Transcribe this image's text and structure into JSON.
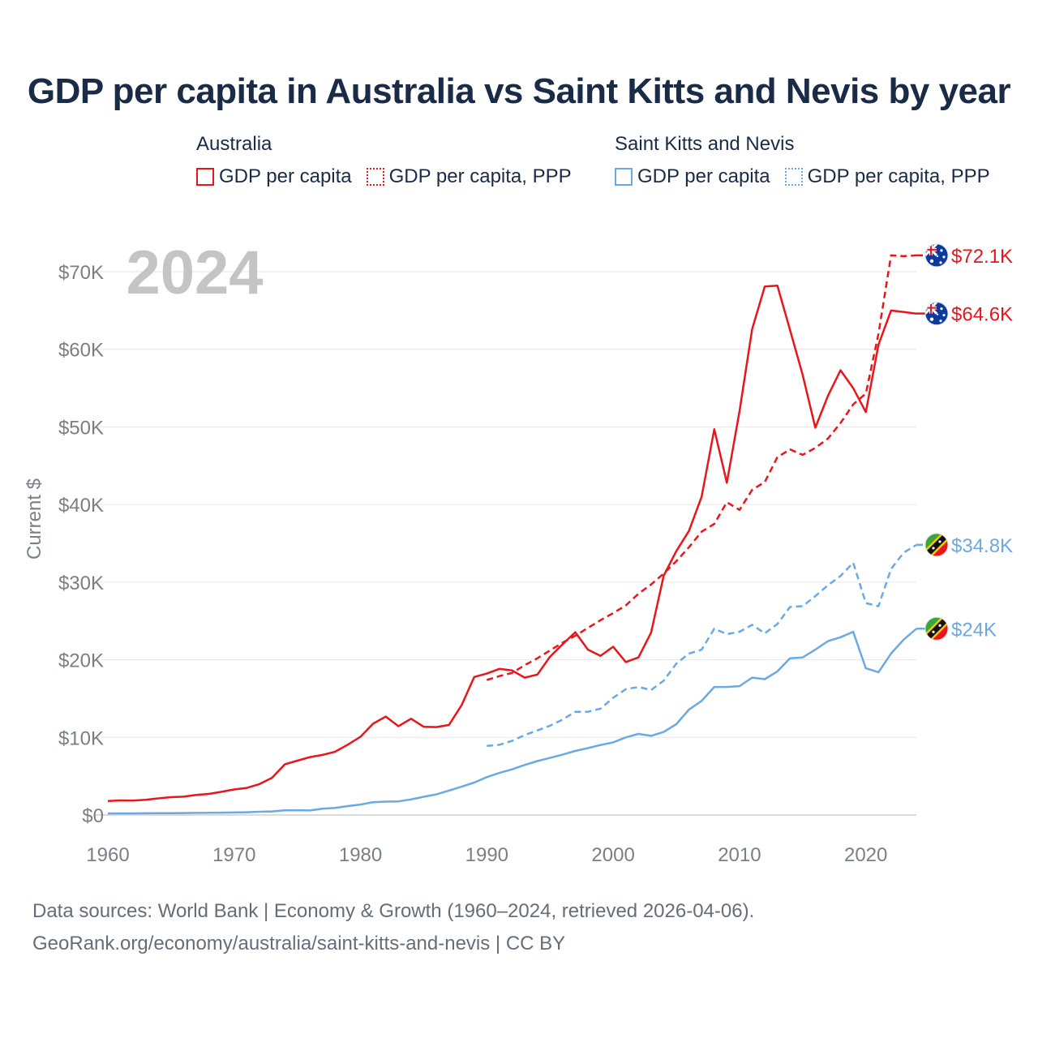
{
  "title": "GDP per capita in Australia vs Saint Kitts and Nevis by year",
  "legend": {
    "groups": [
      {
        "name": "Australia",
        "color": "#e8161b",
        "items": [
          {
            "label": "GDP per capita",
            "style": "solid"
          },
          {
            "label": "GDP per capita, PPP",
            "style": "dotted"
          }
        ]
      },
      {
        "name": "Saint Kitts and Nevis",
        "color": "#6aa9e4",
        "items": [
          {
            "label": "GDP per capita",
            "style": "solid"
          },
          {
            "label": "GDP per capita, PPP",
            "style": "dotted"
          }
        ]
      }
    ]
  },
  "footer": {
    "line1": "Data sources: World Bank | Economy & Growth (1960–2024, retrieved 2026-04-06).",
    "line2": "GeoRank.org/economy/australia/saint-kitts-and-nevis | CC BY"
  },
  "chart_data": {
    "type": "line",
    "year_label": "2024",
    "ylabel": "Current $",
    "xlim": [
      1960,
      2024
    ],
    "ylim": [
      0,
      70000
    ],
    "xticks": [
      1960,
      1970,
      1980,
      1990,
      2000,
      2010,
      2020
    ],
    "yticks": [
      0,
      10000,
      20000,
      30000,
      40000,
      50000,
      60000,
      70000
    ],
    "ytick_labels": [
      "$0",
      "$10K",
      "$20K",
      "$30K",
      "$40K",
      "$50K",
      "$60K",
      "$70K"
    ],
    "grid": true,
    "series": [
      {
        "name": "Australia GDP per capita",
        "country": "Australia",
        "color": "#e8161b",
        "dash": false,
        "start_year": 1960,
        "end_label": "$64.6K",
        "flag": "australia-flag-icon",
        "values": [
          1800,
          1880,
          1850,
          1960,
          2140,
          2300,
          2360,
          2580,
          2720,
          2990,
          3290,
          3490,
          3980,
          4800,
          6520,
          7000,
          7460,
          7740,
          8160,
          9070,
          10080,
          11760,
          12680,
          11440,
          12400,
          11370,
          11330,
          11600,
          14150,
          17780,
          18220,
          18830,
          18620,
          17700,
          18100,
          20380,
          22000,
          23550,
          21300,
          20500,
          21680,
          19700,
          20300,
          23500,
          30820,
          34000,
          36600,
          41000,
          49700,
          42800,
          52000,
          62600,
          68100,
          68200,
          62500,
          56700,
          49900,
          54000,
          57300,
          55000,
          51900,
          60600,
          65000,
          64800,
          64600
        ]
      },
      {
        "name": "Australia GDP per capita, PPP",
        "country": "Australia",
        "color": "#e8161b",
        "dash": true,
        "start_year": 1990,
        "end_label": "$72.1K",
        "flag": "australia-flag-icon",
        "values": [
          17400,
          17900,
          18300,
          19300,
          20200,
          21200,
          22200,
          23100,
          24100,
          25100,
          26000,
          27000,
          28500,
          29700,
          31100,
          32700,
          34500,
          36500,
          37500,
          40300,
          39300,
          41900,
          42900,
          46100,
          47100,
          46400,
          47300,
          48500,
          50500,
          52900,
          54300,
          62000,
          72100,
          72000,
          72100
        ]
      },
      {
        "name": "Saint Kitts and Nevis GDP per capita",
        "country": "Saint Kitts and Nevis",
        "color": "#6aa9e4",
        "dash": false,
        "start_year": 1960,
        "end_label": "$24K",
        "flag": "saint-kitts-and-nevis-flag-icon",
        "values": [
          200,
          210,
          210,
          220,
          230,
          240,
          250,
          270,
          280,
          300,
          320,
          360,
          420,
          460,
          600,
          620,
          580,
          800,
          920,
          1150,
          1350,
          1650,
          1720,
          1760,
          2010,
          2350,
          2650,
          3150,
          3650,
          4180,
          4880,
          5420,
          5880,
          6450,
          6950,
          7350,
          7770,
          8250,
          8620,
          9020,
          9350,
          10000,
          10450,
          10200,
          10700,
          11700,
          13580,
          14700,
          16500,
          16500,
          16600,
          17700,
          17500,
          18500,
          20200,
          20300,
          21300,
          22400,
          22900,
          23600,
          18900,
          18400,
          20800,
          22600,
          24000
        ]
      },
      {
        "name": "Saint Kitts and Nevis GDP per capita, PPP",
        "country": "Saint Kitts and Nevis",
        "color": "#6aa9e4",
        "dash": true,
        "start_year": 1990,
        "end_label": "$34.8K",
        "flag": "saint-kitts-and-nevis-flag-icon",
        "values": [
          8900,
          9050,
          9550,
          10300,
          10900,
          11500,
          12300,
          13300,
          13300,
          13700,
          15100,
          16200,
          16500,
          16100,
          17300,
          19500,
          20800,
          21300,
          24000,
          23300,
          23600,
          24500,
          23400,
          24600,
          26800,
          26900,
          28200,
          29600,
          30800,
          32500,
          27300,
          26900,
          31700,
          33800,
          34800
        ]
      }
    ]
  }
}
